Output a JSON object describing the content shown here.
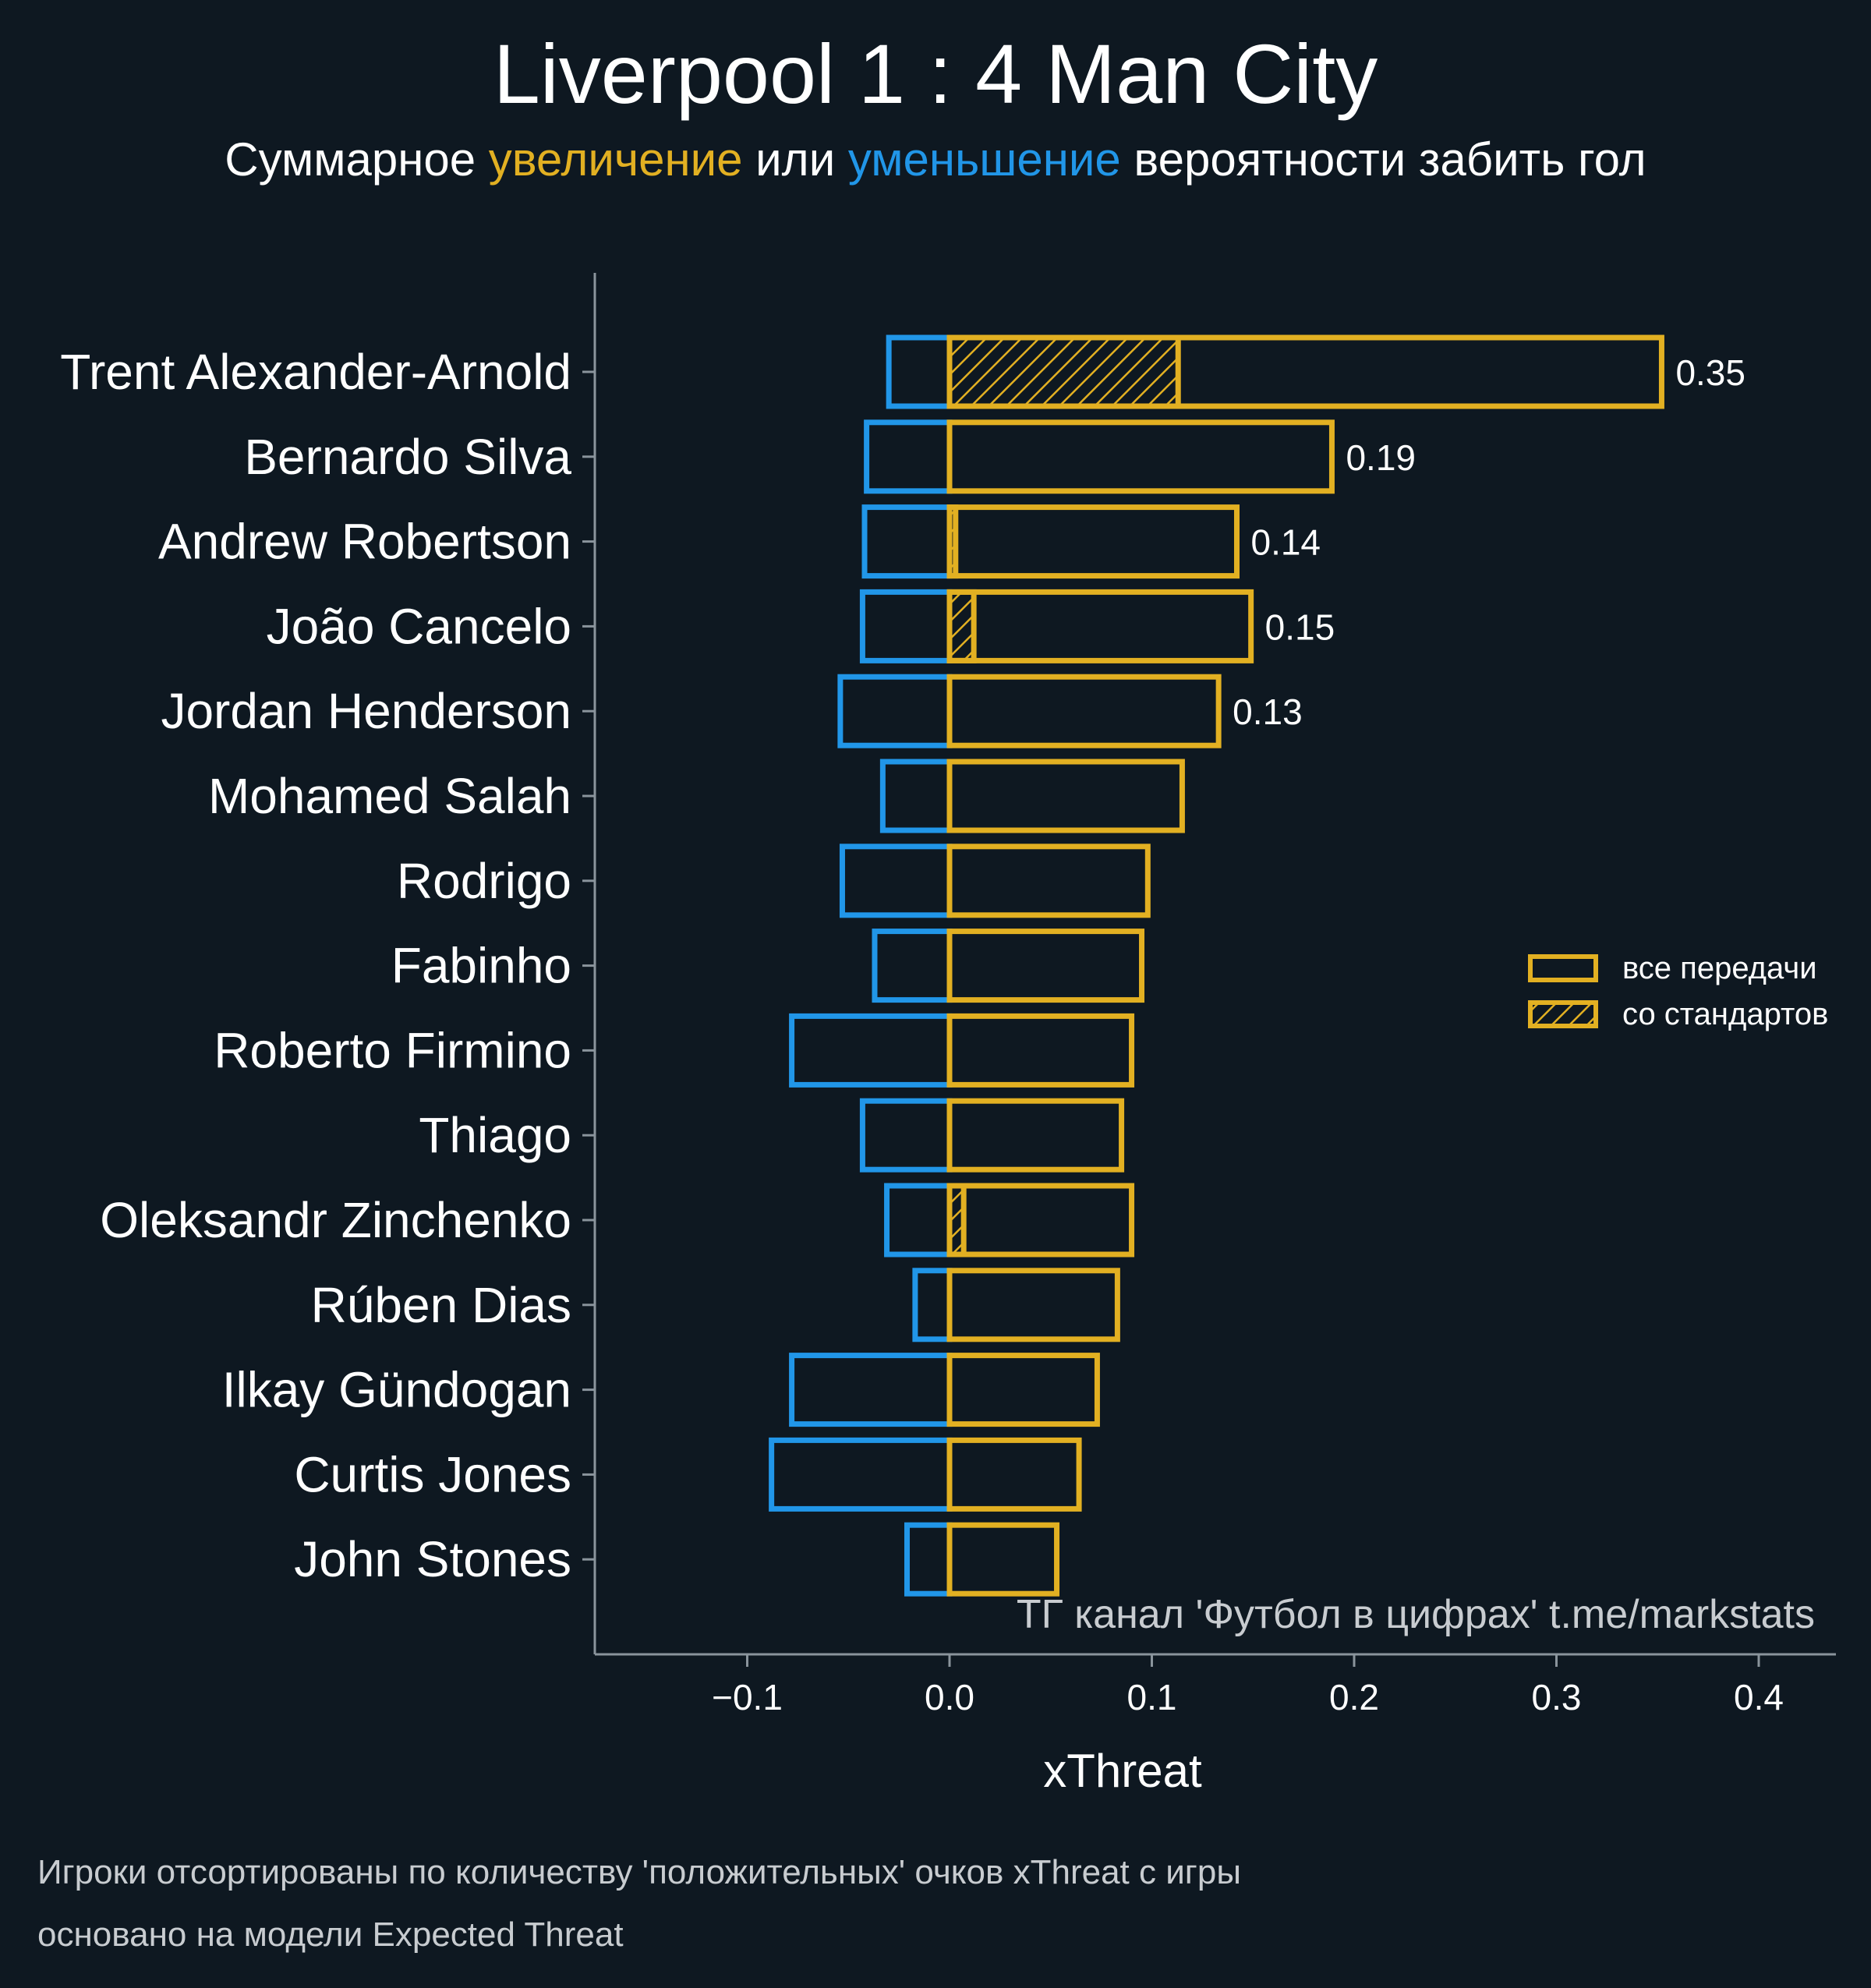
{
  "title": "Liverpool 1 : 4 Man City",
  "subtitle": {
    "pre": "Суммарное ",
    "increase": "увеличение",
    "mid": " или ",
    "decrease": "уменьшение",
    "post": " вероятности забить гол"
  },
  "colors": {
    "background": "#0e1821",
    "positive": "#e2b022",
    "negative": "#2196e8",
    "axis": "#8a949c",
    "text": "#ffffff",
    "muted": "#c8ccd0"
  },
  "watermark": "ТГ канал 'Футбол в цифрах'  t.me/markstats",
  "footnotes": [
    "Игроки отсортированы по количеству 'положительных' очков xThreat с игры",
    "основано на модели Expected Threat"
  ],
  "chart_data": {
    "type": "bar",
    "orientation": "horizontal",
    "xlabel": "xThreat",
    "xlim": [
      -0.175,
      0.44
    ],
    "xticks": [
      -0.1,
      0.0,
      0.1,
      0.2,
      0.3,
      0.4
    ],
    "xtick_labels": [
      "−0.1",
      "0.0",
      "0.1",
      "0.2",
      "0.3",
      "0.4"
    ],
    "legend": {
      "position": "right",
      "items": [
        {
          "label": "все передачи",
          "style": "outline"
        },
        {
          "label": "со стандартов",
          "style": "hatched"
        }
      ]
    },
    "categories": [
      "Trent Alexander-Arnold",
      "Bernardo Silva",
      "Andrew Robertson",
      "João Cancelo",
      "Jordan Henderson",
      "Mohamed Salah",
      "Rodrigo",
      "Fabinho",
      "Roberto Firmino",
      "Thiago",
      "Oleksandr Zinchenko",
      "Rúben Dias",
      "Ilkay Gündogan",
      "Curtis Jones",
      "John Stones"
    ],
    "series": [
      {
        "name": "увеличение",
        "values": [
          0.352,
          0.189,
          0.142,
          0.149,
          0.133,
          0.115,
          0.098,
          0.095,
          0.09,
          0.085,
          0.09,
          0.083,
          0.073,
          0.064,
          0.053
        ]
      },
      {
        "name": "уменьшение",
        "values": [
          -0.03,
          -0.041,
          -0.042,
          -0.043,
          -0.054,
          -0.033,
          -0.053,
          -0.037,
          -0.078,
          -0.043,
          -0.031,
          -0.017,
          -0.078,
          -0.088,
          -0.021
        ]
      },
      {
        "name": "со стандартов",
        "values": [
          0.113,
          0,
          0.003,
          0.012,
          0,
          0,
          0,
          0,
          0,
          0,
          0.007,
          0,
          0,
          0,
          0
        ]
      }
    ],
    "value_labels": [
      "0.35",
      "0.19",
      "0.14",
      "0.15",
      "0.13",
      "",
      "",
      "",
      "",
      "",
      "",
      "",
      "",
      "",
      ""
    ]
  }
}
